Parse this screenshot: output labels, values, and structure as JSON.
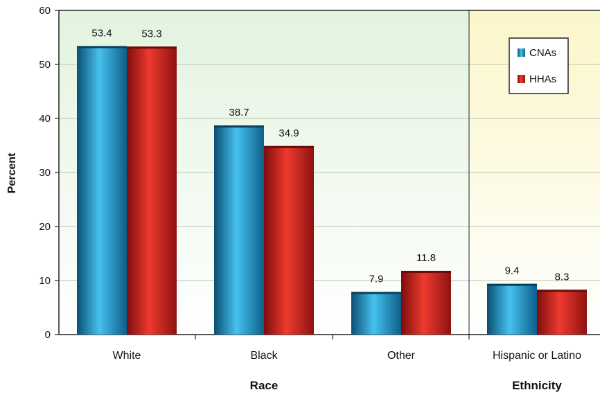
{
  "chart_data": {
    "type": "bar",
    "ylabel": "Percent",
    "ylim": [
      0,
      60
    ],
    "yticks": [
      "0",
      "10",
      "20",
      "30",
      "40",
      "50",
      "60"
    ],
    "categories": [
      "White",
      "Black",
      "Other",
      "Hispanic or Latino"
    ],
    "groups": [
      {
        "label": "Race",
        "categories": [
          "White",
          "Black",
          "Other"
        ]
      },
      {
        "label": "Ethnicity",
        "categories": [
          "Hispanic or Latino"
        ]
      }
    ],
    "series": [
      {
        "name": "CNAs",
        "values": [
          53.4,
          38.7,
          7.9,
          9.4
        ],
        "value_labels": [
          "53.4",
          "38.7",
          "7.9",
          "9.4"
        ],
        "color": "#1a9bd1"
      },
      {
        "name": "HHAs",
        "values": [
          53.3,
          34.9,
          11.8,
          8.3
        ],
        "value_labels": [
          "53.3",
          "34.9",
          "11.8",
          "8.3"
        ],
        "color": "#d42424"
      }
    ],
    "legend_position": "top-right",
    "grid": true,
    "background_colors": {
      "race": "#e3f3df",
      "ethnicity": "#fbf6c9"
    }
  }
}
